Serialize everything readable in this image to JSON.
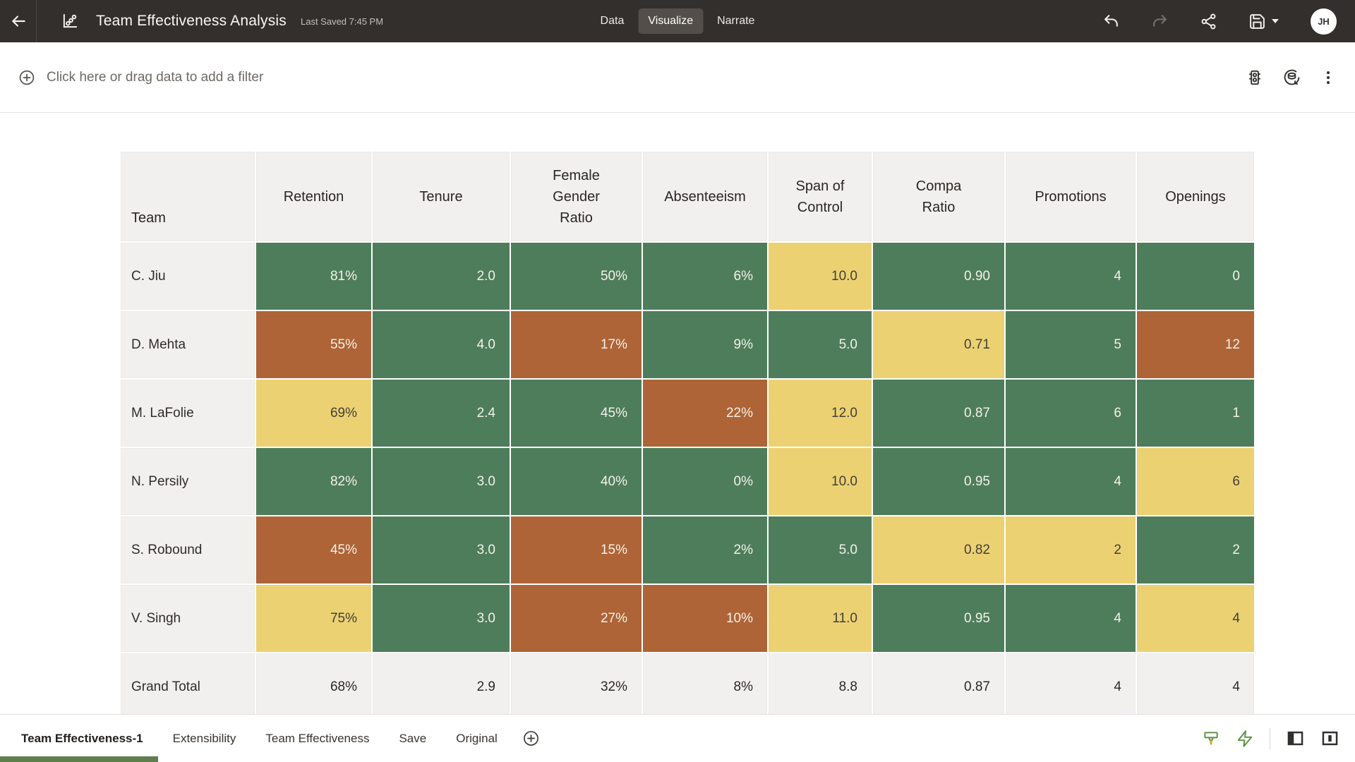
{
  "header": {
    "title": "Team Effectiveness Analysis",
    "last_saved": "Last Saved 7:45 PM",
    "tabs": [
      {
        "label": "Data",
        "active": false
      },
      {
        "label": "Visualize",
        "active": true
      },
      {
        "label": "Narrate",
        "active": false
      }
    ],
    "avatar_initials": "JH"
  },
  "filter_bar": {
    "prompt": "Click here or drag data to add a filter"
  },
  "table": {
    "columns": [
      "Team",
      "Retention",
      "Tenure",
      "Female Gender Ratio",
      "Absenteeism",
      "Span of Control",
      "Compa Ratio",
      "Promotions",
      "Openings"
    ],
    "rows": [
      {
        "team": "C. Jiu",
        "values": [
          "81%",
          "2.0",
          "50%",
          "6%",
          "10.0",
          "0.90",
          "4",
          "0"
        ],
        "colors": [
          "green",
          "green",
          "green",
          "green",
          "yellow",
          "green",
          "green",
          "green"
        ]
      },
      {
        "team": "D. Mehta",
        "values": [
          "55%",
          "4.0",
          "17%",
          "9%",
          "5.0",
          "0.71",
          "5",
          "12"
        ],
        "colors": [
          "orange",
          "green",
          "orange",
          "green",
          "green",
          "yellow",
          "green",
          "orange"
        ]
      },
      {
        "team": "M. LaFolie",
        "values": [
          "69%",
          "2.4",
          "45%",
          "22%",
          "12.0",
          "0.87",
          "6",
          "1"
        ],
        "colors": [
          "yellow",
          "green",
          "green",
          "orange",
          "yellow",
          "green",
          "green",
          "green"
        ]
      },
      {
        "team": "N. Persily",
        "values": [
          "82%",
          "3.0",
          "40%",
          "0%",
          "10.0",
          "0.95",
          "4",
          "6"
        ],
        "colors": [
          "green",
          "green",
          "green",
          "green",
          "yellow",
          "green",
          "green",
          "yellow"
        ]
      },
      {
        "team": "S. Robound",
        "values": [
          "45%",
          "3.0",
          "15%",
          "2%",
          "5.0",
          "0.82",
          "2",
          "2"
        ],
        "colors": [
          "orange",
          "green",
          "orange",
          "green",
          "green",
          "yellow",
          "yellow",
          "green"
        ]
      },
      {
        "team": "V. Singh",
        "values": [
          "75%",
          "3.0",
          "27%",
          "10%",
          "11.0",
          "0.95",
          "4",
          "4"
        ],
        "colors": [
          "yellow",
          "green",
          "orange",
          "orange",
          "yellow",
          "green",
          "green",
          "yellow"
        ]
      }
    ],
    "grand_total": {
      "team": "Grand Total",
      "values": [
        "68%",
        "2.9",
        "32%",
        "8%",
        "8.8",
        "0.87",
        "4",
        "4"
      ]
    }
  },
  "footer": {
    "tabs": [
      {
        "label": "Team Effectiveness-1",
        "active": true
      },
      {
        "label": "Extensibility",
        "active": false
      },
      {
        "label": "Team Effectiveness",
        "active": false
      },
      {
        "label": "Save",
        "active": false
      },
      {
        "label": "Original",
        "active": false
      }
    ]
  },
  "colors": {
    "heat_green": "#4e7d5b",
    "heat_orange": "#ae6436",
    "heat_yellow": "#ecd173",
    "accent_green": "#5f7e4e",
    "topbar_bg": "#332f2c"
  }
}
